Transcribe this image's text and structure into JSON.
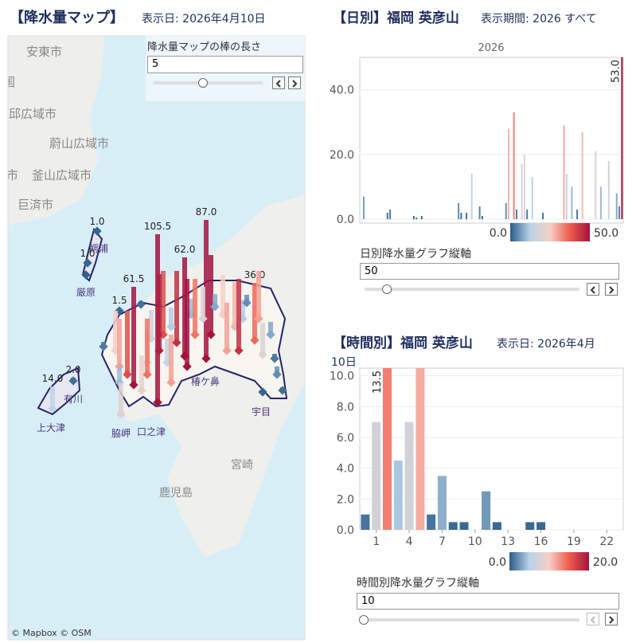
{
  "map_panel": {
    "title": "【降水量マップ】",
    "date": "表示日: 2026年4月10日",
    "control": {
      "label": "降水量マップの棒の長さ",
      "value": 5
    },
    "places": [
      "安東市",
      "国",
      "大邱広域市",
      "蔚山広域市",
      "市",
      "釜山広域市",
      "巨済市",
      "鰐浦",
      "厳原",
      "上大津",
      "有川",
      "脇岬",
      "口之津",
      "椿ケ鼻",
      "宇目",
      "宮崎",
      "鹿児島"
    ],
    "attribution": "© Mapbox  © OSM",
    "stations": {
      "values": [
        1,
        1,
        0.5,
        1.5,
        2,
        61.5,
        105.5,
        87,
        62,
        36,
        14,
        2,
        3,
        25,
        30,
        10,
        40,
        20,
        20,
        18,
        40,
        15,
        30,
        45,
        10,
        35,
        20,
        50,
        8,
        25,
        30,
        28,
        12,
        45,
        5,
        30,
        20,
        8,
        3,
        5,
        2,
        1,
        22,
        55,
        48,
        12,
        35
      ],
      "value_labels": [
        "1.0",
        "1.0",
        null,
        "1.5",
        null,
        "61.5",
        "105.5",
        "87.0",
        "62.0",
        "36.0",
        "14.0",
        "2.0",
        null,
        null,
        null,
        null,
        null,
        null,
        null,
        null,
        null,
        null,
        null,
        null,
        null,
        null,
        null,
        null,
        null,
        null,
        null,
        null,
        null,
        null,
        null,
        null,
        null,
        null,
        null,
        null,
        null,
        null,
        null,
        null,
        null,
        null,
        null
      ]
    }
  },
  "chart_data": [
    {
      "type": "bar",
      "title": "【日別】福岡 英彦山",
      "subtitle": "表示期間: 2026 すべて",
      "header": "2026",
      "values": [
        0,
        7,
        0,
        0,
        0,
        0,
        0,
        0,
        0,
        0,
        2,
        3,
        0,
        0,
        0,
        0,
        0,
        0,
        0,
        0,
        1,
        0.5,
        0,
        1,
        0,
        0,
        0,
        0,
        0,
        0,
        0,
        0,
        0,
        0,
        0,
        0,
        0,
        5,
        2,
        0,
        2,
        0,
        14,
        0,
        0,
        4,
        1,
        0,
        0,
        0,
        0,
        0,
        0,
        0,
        0,
        5,
        28,
        0,
        33,
        3,
        0,
        17,
        20,
        3,
        0,
        13,
        0,
        0,
        0,
        2,
        0,
        0,
        0,
        0,
        0,
        0,
        0,
        29,
        14,
        0,
        10,
        0,
        3,
        0,
        27,
        0,
        0,
        0,
        0,
        21,
        0,
        10,
        0,
        0,
        18,
        0,
        0,
        8,
        4,
        53
      ],
      "value_labels": [
        null,
        null,
        null,
        null,
        null,
        null,
        null,
        null,
        null,
        null,
        null,
        null,
        null,
        null,
        null,
        null,
        null,
        null,
        null,
        null,
        null,
        null,
        null,
        null,
        null,
        null,
        null,
        null,
        null,
        null,
        null,
        null,
        null,
        null,
        null,
        null,
        null,
        null,
        null,
        null,
        null,
        null,
        null,
        null,
        null,
        null,
        null,
        null,
        null,
        null,
        null,
        null,
        null,
        null,
        null,
        null,
        null,
        null,
        null,
        null,
        null,
        null,
        null,
        null,
        null,
        null,
        null,
        null,
        null,
        null,
        null,
        null,
        null,
        null,
        null,
        null,
        null,
        null,
        null,
        null,
        null,
        null,
        null,
        null,
        null,
        null,
        null,
        null,
        null,
        null,
        null,
        null,
        null,
        null,
        null,
        null,
        null,
        null,
        null,
        "53.0"
      ],
      "ylim": [
        -1.2,
        50
      ],
      "yticks": [
        {
          "value": 0,
          "label": "0.0"
        },
        {
          "value": 20,
          "label": "20.0"
        },
        {
          "value": 40,
          "label": "40.0"
        }
      ],
      "grid": true,
      "color_scale": {
        "ticks": [
          {
            "value": 0,
            "label": "0.0"
          },
          {
            "value": 50,
            "label": "50.0"
          }
        ],
        "colors": [
          "#2b5c8a",
          "#b9d3e8",
          "#f7cfc6",
          "#ee5b4c",
          "#a3133f"
        ]
      },
      "control": {
        "label": "日別降水量グラフ縦軸",
        "value": 50
      }
    },
    {
      "type": "bar",
      "title": "【時間別】福岡 英彦山",
      "subtitle_lines": [
        "表示日: 2026年4月",
        "10日"
      ],
      "x": [
        0,
        1,
        2,
        3,
        4,
        5,
        6,
        7,
        8,
        9,
        10,
        11,
        12,
        13,
        14,
        15,
        16,
        17,
        18,
        19,
        20,
        21,
        22,
        23
      ],
      "xticks": [
        1,
        4,
        7,
        10,
        13,
        16,
        19,
        22
      ],
      "values": [
        1,
        7,
        13.5,
        4.5,
        7,
        11.5,
        1,
        3.5,
        0.5,
        0.5,
        0,
        2.5,
        0.5,
        0,
        0,
        0.5,
        0.5,
        0,
        0,
        0,
        0,
        0,
        0,
        0
      ],
      "value_labels": [
        null,
        null,
        "13.5",
        null,
        null,
        null,
        null,
        null,
        null,
        null,
        null,
        null,
        null,
        null,
        null,
        null,
        null,
        null,
        null,
        null,
        null,
        null,
        null,
        null
      ],
      "ylim": [
        0,
        10.5
      ],
      "yticks": [
        {
          "value": 0,
          "label": "0.0"
        },
        {
          "value": 2,
          "label": "2.0"
        },
        {
          "value": 4,
          "label": "4.0"
        },
        {
          "value": 6,
          "label": "6.0"
        },
        {
          "value": 8,
          "label": "8.0"
        },
        {
          "value": 10,
          "label": "10.0"
        }
      ],
      "grid": true,
      "color_scale": {
        "ticks": [
          {
            "value": 0,
            "label": "0.0"
          },
          {
            "value": 20,
            "label": "20.0"
          }
        ],
        "colors": [
          "#2b5c8a",
          "#b9d3e8",
          "#f7cfc6",
          "#ee5b4c",
          "#a3133f"
        ]
      },
      "control": {
        "label": "時間別降水量グラフ縦軸",
        "value": 10
      }
    }
  ]
}
